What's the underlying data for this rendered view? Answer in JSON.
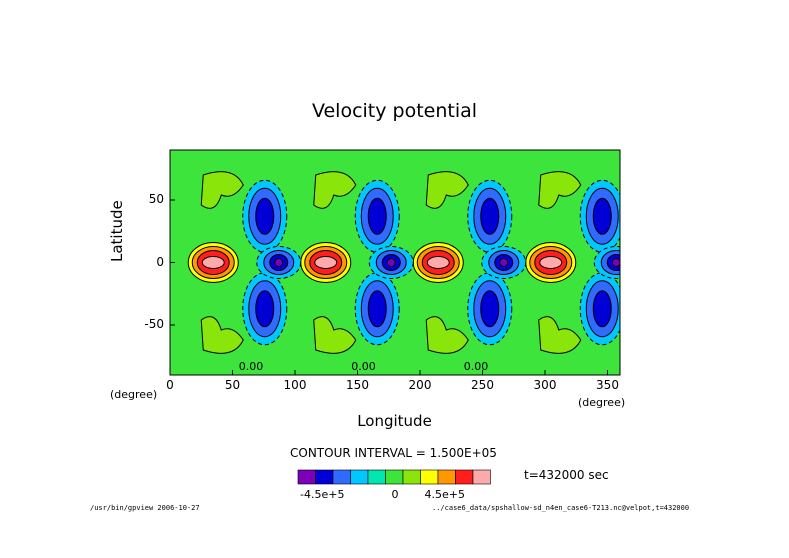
{
  "window": {
    "title": "Velocity potential"
  },
  "chart_data": {
    "type": "contour",
    "title": "Velocity potential",
    "xlabel": "Longitude",
    "ylabel": "Latitude",
    "xunit": "(degree)",
    "xunit_left": "(degree)",
    "xlim": [
      0,
      360
    ],
    "ylim": [
      -90,
      90
    ],
    "xticks": [
      "0",
      "50",
      "100",
      "150",
      "200",
      "250",
      "300",
      "350"
    ],
    "yticks": [
      "50",
      "0",
      "-50"
    ],
    "contour_interval_text": "CONTOUR INTERVAL = 1.500E+05",
    "contour_interval": 150000,
    "zero_labels": [
      "0.00",
      "0.00",
      "0.00"
    ],
    "time_label": "t=432000 sec",
    "colorbar": {
      "labels": [
        "-4.5e+5",
        "0",
        "4.5e+5"
      ],
      "colors": [
        "#7b00b8",
        "#0000d6",
        "#2f6bff",
        "#00c8ff",
        "#00e6b0",
        "#3ce43c",
        "#8ae60a",
        "#ffff00",
        "#ff9800",
        "#ff1e1e",
        "#ffaaaa"
      ]
    },
    "background_color": "#3ce43c",
    "pattern": {
      "wavenumber": 4,
      "positive_centers_lon": [
        33,
        123,
        213,
        303
      ],
      "negative_centers_lon": [
        87,
        177,
        267,
        357
      ],
      "center_lat": 0
    }
  },
  "footer": {
    "left": "/usr/bin/gpview  2006-10-27",
    "right": "../case6_data/spshallow-sd_n4en_case6-T213.nc@velpot,t=432000"
  }
}
